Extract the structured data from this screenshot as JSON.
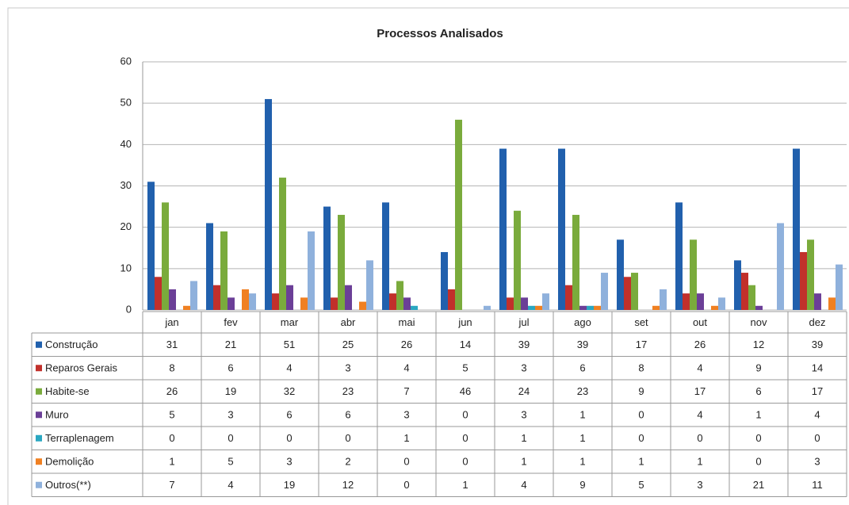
{
  "chart_data": {
    "type": "bar",
    "title": "Processos Analisados",
    "categories": [
      "jan",
      "fev",
      "mar",
      "abr",
      "mai",
      "jun",
      "jul",
      "ago",
      "set",
      "out",
      "nov",
      "dez"
    ],
    "series": [
      {
        "name": "Construção",
        "color": "#2160ad",
        "values": [
          31,
          21,
          51,
          25,
          26,
          14,
          39,
          39,
          17,
          26,
          12,
          39
        ]
      },
      {
        "name": "Reparos Gerais",
        "color": "#c1302b",
        "values": [
          8,
          6,
          4,
          3,
          4,
          5,
          3,
          6,
          8,
          4,
          9,
          14
        ]
      },
      {
        "name": "Habite-se",
        "color": "#7aab3c",
        "values": [
          26,
          19,
          32,
          23,
          7,
          46,
          24,
          23,
          9,
          17,
          6,
          17
        ]
      },
      {
        "name": "Muro",
        "color": "#6b3f97",
        "values": [
          5,
          3,
          6,
          6,
          3,
          0,
          3,
          1,
          0,
          4,
          1,
          4
        ]
      },
      {
        "name": "Terraplenagem",
        "color": "#2aa7c1",
        "values": [
          0,
          0,
          0,
          0,
          1,
          0,
          1,
          1,
          0,
          0,
          0,
          0
        ]
      },
      {
        "name": "Demolição",
        "color": "#f08022",
        "values": [
          1,
          5,
          3,
          2,
          0,
          0,
          1,
          1,
          1,
          1,
          0,
          3
        ]
      },
      {
        "name": "Outros(**)",
        "color": "#8fb1dc",
        "values": [
          7,
          4,
          19,
          12,
          0,
          1,
          4,
          9,
          5,
          3,
          21,
          11
        ]
      }
    ],
    "ylim": [
      0,
      60
    ],
    "yticks": [
      0,
      10,
      20,
      30,
      40,
      50,
      60
    ],
    "grid": true
  }
}
